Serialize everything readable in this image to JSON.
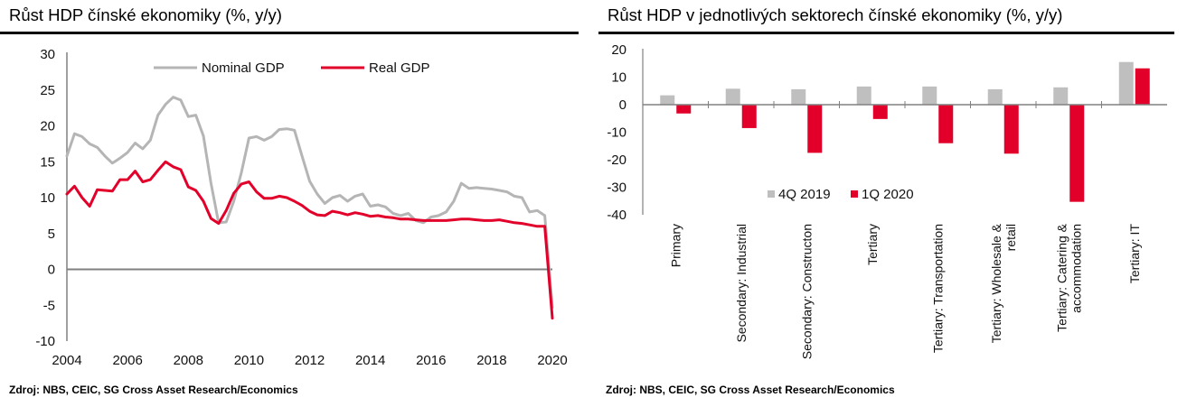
{
  "left": {
    "title": "Růst HDP čínské ekonomiky (%, y/y)",
    "source": "Zdroj: NBS, CEIC, SG Cross Asset Research/Economics"
  },
  "right": {
    "title": "Růst HDP v jednotlivých sektorech čínské ekonomiky (%, y/y)",
    "source": "Zdroj: NBS, CEIC, SG Cross Asset Research/Economics"
  },
  "colors": {
    "nominal": "#b5b5b5",
    "real": "#e2002a",
    "q4_2019": "#bfbfbf",
    "q1_2020": "#e2002a",
    "zero_line": "#808080"
  },
  "chart_data": [
    {
      "type": "line",
      "title": "Růst HDP čínské ekonomiky (%, y/y)",
      "ylim": [
        -10,
        30
      ],
      "yticks": [
        30,
        25,
        20,
        15,
        10,
        5,
        0,
        -5,
        -10
      ],
      "xlim": [
        2004,
        2020
      ],
      "xticks": [
        2004,
        2006,
        2008,
        2010,
        2012,
        2014,
        2016,
        2018,
        2020
      ],
      "legend_position": "top",
      "grid": false,
      "series": [
        {
          "name": "Nominal GDP",
          "color": "#b5b5b5",
          "x": [
            2004.0,
            2004.25,
            2004.5,
            2004.75,
            2005.0,
            2005.25,
            2005.5,
            2005.75,
            2006.0,
            2006.25,
            2006.5,
            2006.75,
            2007.0,
            2007.25,
            2007.5,
            2007.75,
            2008.0,
            2008.25,
            2008.5,
            2008.75,
            2009.0,
            2009.25,
            2009.5,
            2009.75,
            2010.0,
            2010.25,
            2010.5,
            2010.75,
            2011.0,
            2011.25,
            2011.5,
            2011.75,
            2012.0,
            2012.25,
            2012.5,
            2012.75,
            2013.0,
            2013.25,
            2013.5,
            2013.75,
            2014.0,
            2014.25,
            2014.5,
            2014.75,
            2015.0,
            2015.25,
            2015.5,
            2015.75,
            2016.0,
            2016.25,
            2016.5,
            2016.75,
            2017.0,
            2017.25,
            2017.5,
            2017.75,
            2018.0,
            2018.25,
            2018.5,
            2018.75,
            2019.0,
            2019.25,
            2019.5,
            2019.75,
            2020.0
          ],
          "y": [
            15.8,
            18.9,
            18.5,
            17.5,
            17.0,
            15.8,
            14.8,
            15.5,
            16.3,
            17.6,
            16.8,
            18.0,
            21.5,
            23.0,
            24.0,
            23.6,
            21.3,
            21.5,
            18.6,
            12.0,
            6.5,
            6.6,
            9.5,
            13.5,
            18.3,
            18.5,
            18.0,
            18.5,
            19.5,
            19.6,
            19.4,
            15.8,
            12.3,
            10.5,
            9.2,
            10.0,
            10.3,
            9.5,
            10.2,
            10.5,
            8.8,
            9.0,
            8.7,
            7.8,
            7.5,
            7.8,
            6.8,
            6.5,
            7.3,
            7.5,
            8.0,
            9.5,
            12.0,
            11.3,
            11.4,
            11.3,
            11.2,
            11.0,
            10.8,
            10.2,
            10.0,
            8.0,
            8.2,
            7.5,
            -5.3
          ]
        },
        {
          "name": "Real GDP",
          "color": "#e2002a",
          "x": [
            2004.0,
            2004.25,
            2004.5,
            2004.75,
            2005.0,
            2005.25,
            2005.5,
            2005.75,
            2006.0,
            2006.25,
            2006.5,
            2006.75,
            2007.0,
            2007.25,
            2007.5,
            2007.75,
            2008.0,
            2008.25,
            2008.5,
            2008.75,
            2009.0,
            2009.25,
            2009.5,
            2009.75,
            2010.0,
            2010.25,
            2010.5,
            2010.75,
            2011.0,
            2011.25,
            2011.5,
            2011.75,
            2012.0,
            2012.25,
            2012.5,
            2012.75,
            2013.0,
            2013.25,
            2013.5,
            2013.75,
            2014.0,
            2014.25,
            2014.5,
            2014.75,
            2015.0,
            2015.25,
            2015.5,
            2015.75,
            2016.0,
            2016.25,
            2016.5,
            2016.75,
            2017.0,
            2017.25,
            2017.5,
            2017.75,
            2018.0,
            2018.25,
            2018.5,
            2018.75,
            2019.0,
            2019.25,
            2019.5,
            2019.75,
            2020.0
          ],
          "y": [
            10.5,
            11.6,
            10.0,
            8.8,
            11.1,
            11.0,
            10.9,
            12.5,
            12.5,
            13.7,
            12.2,
            12.5,
            13.8,
            15.0,
            14.3,
            13.9,
            11.5,
            11.0,
            9.5,
            7.1,
            6.4,
            8.2,
            10.6,
            11.9,
            12.2,
            10.8,
            9.9,
            9.9,
            10.2,
            10.0,
            9.5,
            8.9,
            8.1,
            7.6,
            7.5,
            8.1,
            7.9,
            7.6,
            7.9,
            7.7,
            7.4,
            7.5,
            7.3,
            7.2,
            7.0,
            7.0,
            6.9,
            6.8,
            6.8,
            6.8,
            6.8,
            6.9,
            7.0,
            7.0,
            6.9,
            6.8,
            6.8,
            6.9,
            6.7,
            6.5,
            6.4,
            6.2,
            6.0,
            6.0,
            -6.8
          ]
        }
      ]
    },
    {
      "type": "bar",
      "title": "Růst HDP v jednotlivých sektorech čínské ekonomiky (%, y/y)",
      "ylim": [
        -40,
        20
      ],
      "yticks": [
        20,
        10,
        0,
        -10,
        -20,
        -30,
        -40
      ],
      "legend_position": "lower-left",
      "grid": false,
      "categories": [
        [
          "Primary"
        ],
        [
          "Secondary: Industrial"
        ],
        [
          "Secondary: Constructon"
        ],
        [
          "Tertiary"
        ],
        [
          "Tertiary: Transportation"
        ],
        [
          "Tertiary: Wholesale &",
          "retail"
        ],
        [
          "Tertiary: Catering &",
          "accommodation"
        ],
        [
          "Tertiary: IT"
        ]
      ],
      "series": [
        {
          "name": "4Q 2019",
          "color": "#bfbfbf",
          "values": [
            3.4,
            5.8,
            5.6,
            6.6,
            6.6,
            5.6,
            6.3,
            15.5
          ]
        },
        {
          "name": "1Q 2020",
          "color": "#e2002a",
          "values": [
            -3.2,
            -8.5,
            -17.5,
            -5.2,
            -14.0,
            -17.8,
            -35.3,
            13.2
          ]
        }
      ]
    }
  ]
}
